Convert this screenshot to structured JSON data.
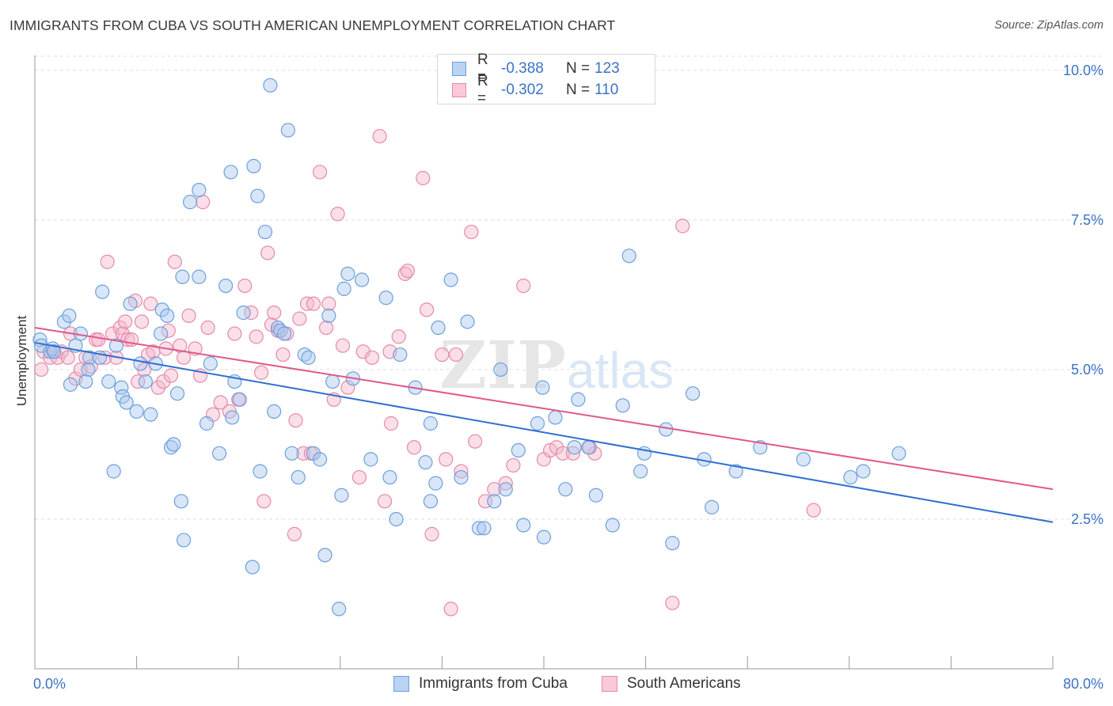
{
  "title": "IMMIGRANTS FROM CUBA VS SOUTH AMERICAN UNEMPLOYMENT CORRELATION CHART",
  "source": "Source: ZipAtlas.com",
  "watermark": {
    "zip": "ZIP",
    "atlas": "atlas"
  },
  "legend_top": [
    {
      "r_label": "R =",
      "r_value": "-0.388",
      "n_label": "N =",
      "n_value": "123"
    },
    {
      "r_label": "R =",
      "r_value": "-0.302",
      "n_label": "N =",
      "n_value": "110"
    }
  ],
  "legend_bottom": [
    "Immigrants from Cuba",
    "South Americans"
  ],
  "colors": {
    "blue_fill": "#a9c8f0",
    "blue_stroke": "#6e9fdc",
    "blue_line": "#2f6fd0",
    "pink_fill": "#f5b8cc",
    "pink_stroke": "#e58aa8",
    "pink_line": "#e0588a",
    "tick_text": "#3a72c4",
    "grid": "#dddddd"
  },
  "chart_data": {
    "type": "scatter",
    "title": "IMMIGRANTS FROM CUBA VS SOUTH AMERICAN UNEMPLOYMENT CORRELATION CHART",
    "xlabel": "",
    "ylabel": "Unemployment",
    "xlim": [
      0,
      80
    ],
    "ylim": [
      0,
      10.25
    ],
    "x_tick_labels": [
      "0.0%",
      "80.0%"
    ],
    "y_ticks": [
      2.5,
      5.0,
      7.5,
      10.0
    ],
    "y_tick_labels": [
      "2.5%",
      "5.0%",
      "7.5%",
      "10.0%"
    ],
    "grid": true,
    "legend_position": "top-center",
    "series": [
      {
        "name": "Immigrants from Cuba",
        "color": "#6e9fdc",
        "trend": {
          "x": [
            0,
            80
          ],
          "y": [
            5.45,
            2.45
          ]
        },
        "points": [
          [
            0.4,
            5.5
          ],
          [
            0.5,
            5.4
          ],
          [
            1.2,
            5.3
          ],
          [
            1.4,
            5.35
          ],
          [
            1.5,
            5.3
          ],
          [
            2.3,
            5.8
          ],
          [
            2.7,
            5.9
          ],
          [
            2.8,
            4.75
          ],
          [
            3.2,
            5.4
          ],
          [
            3.6,
            5.6
          ],
          [
            4.3,
            5.2
          ],
          [
            4.2,
            5.0
          ],
          [
            4.0,
            4.8
          ],
          [
            5.3,
            6.3
          ],
          [
            5.1,
            5.2
          ],
          [
            5.8,
            4.8
          ],
          [
            6.2,
            3.3
          ],
          [
            6.4,
            5.4
          ],
          [
            6.8,
            4.7
          ],
          [
            6.9,
            4.55
          ],
          [
            7.2,
            4.45
          ],
          [
            7.5,
            6.1
          ],
          [
            8.0,
            4.3
          ],
          [
            8.3,
            5.1
          ],
          [
            8.7,
            4.8
          ],
          [
            9.1,
            4.25
          ],
          [
            9.5,
            5.1
          ],
          [
            9.9,
            5.6
          ],
          [
            10.0,
            6.0
          ],
          [
            10.4,
            5.9
          ],
          [
            10.7,
            3.7
          ],
          [
            10.9,
            3.75
          ],
          [
            11.2,
            4.6
          ],
          [
            11.5,
            2.8
          ],
          [
            11.7,
            2.15
          ],
          [
            11.6,
            6.55
          ],
          [
            12.2,
            7.8
          ],
          [
            12.9,
            6.55
          ],
          [
            12.9,
            8.0
          ],
          [
            13.5,
            4.1
          ],
          [
            13.8,
            5.1
          ],
          [
            14.5,
            3.6
          ],
          [
            15.0,
            6.4
          ],
          [
            15.4,
            8.3
          ],
          [
            15.5,
            4.2
          ],
          [
            15.7,
            4.8
          ],
          [
            16.1,
            4.5
          ],
          [
            16.4,
            5.95
          ],
          [
            17.1,
            1.7
          ],
          [
            17.2,
            8.4
          ],
          [
            17.5,
            7.9
          ],
          [
            17.7,
            3.3
          ],
          [
            18.1,
            7.3
          ],
          [
            18.5,
            9.75
          ],
          [
            18.8,
            4.3
          ],
          [
            19.1,
            5.7
          ],
          [
            19.3,
            5.65
          ],
          [
            19.6,
            5.6
          ],
          [
            19.9,
            9.0
          ],
          [
            20.2,
            3.6
          ],
          [
            20.7,
            3.2
          ],
          [
            21.2,
            5.25
          ],
          [
            21.5,
            5.2
          ],
          [
            21.9,
            3.6
          ],
          [
            22.4,
            3.5
          ],
          [
            22.8,
            1.9
          ],
          [
            23.1,
            5.9
          ],
          [
            23.4,
            4.8
          ],
          [
            23.9,
            1.0
          ],
          [
            24.1,
            2.9
          ],
          [
            24.3,
            6.35
          ],
          [
            24.6,
            6.6
          ],
          [
            25.0,
            4.85
          ],
          [
            25.7,
            6.5
          ],
          [
            26.4,
            3.5
          ],
          [
            27.6,
            6.2
          ],
          [
            27.9,
            3.2
          ],
          [
            28.4,
            2.5
          ],
          [
            28.7,
            5.25
          ],
          [
            29.9,
            4.7
          ],
          [
            30.7,
            3.45
          ],
          [
            31.1,
            2.8
          ],
          [
            31.1,
            4.1
          ],
          [
            31.5,
            3.1
          ],
          [
            31.7,
            5.7
          ],
          [
            32.7,
            6.5
          ],
          [
            33.5,
            3.2
          ],
          [
            34.0,
            5.8
          ],
          [
            34.9,
            2.35
          ],
          [
            35.3,
            2.35
          ],
          [
            36.1,
            2.8
          ],
          [
            36.6,
            5.0
          ],
          [
            37.0,
            3.0
          ],
          [
            38.0,
            3.65
          ],
          [
            38.4,
            2.4
          ],
          [
            39.5,
            4.1
          ],
          [
            39.9,
            4.7
          ],
          [
            40.0,
            2.2
          ],
          [
            40.9,
            4.2
          ],
          [
            41.7,
            3.0
          ],
          [
            42.4,
            3.7
          ],
          [
            42.7,
            4.5
          ],
          [
            43.5,
            3.7
          ],
          [
            44.1,
            2.9
          ],
          [
            45.4,
            2.4
          ],
          [
            46.2,
            4.4
          ],
          [
            46.7,
            6.9
          ],
          [
            47.6,
            3.3
          ],
          [
            47.9,
            3.6
          ],
          [
            49.6,
            4.0
          ],
          [
            50.1,
            2.1
          ],
          [
            51.7,
            4.6
          ],
          [
            52.6,
            3.5
          ],
          [
            53.2,
            2.7
          ],
          [
            55.1,
            3.3
          ],
          [
            57.0,
            3.7
          ],
          [
            60.4,
            3.5
          ],
          [
            64.1,
            3.2
          ],
          [
            65.1,
            3.3
          ],
          [
            67.9,
            3.6
          ]
        ]
      },
      {
        "name": "South Americans",
        "color": "#e58aa8",
        "trend": {
          "x": [
            0,
            80
          ],
          "y": [
            5.7,
            3.0
          ]
        },
        "points": [
          [
            0.5,
            5.0
          ],
          [
            0.7,
            5.3
          ],
          [
            1.2,
            5.2
          ],
          [
            1.5,
            5.3
          ],
          [
            1.8,
            5.2
          ],
          [
            2.1,
            5.3
          ],
          [
            2.6,
            5.2
          ],
          [
            2.8,
            5.6
          ],
          [
            3.2,
            4.85
          ],
          [
            3.6,
            5.0
          ],
          [
            4.0,
            5.2
          ],
          [
            4.4,
            5.05
          ],
          [
            4.8,
            5.5
          ],
          [
            5.0,
            5.5
          ],
          [
            5.5,
            5.2
          ],
          [
            5.7,
            6.8
          ],
          [
            6.1,
            5.6
          ],
          [
            6.4,
            5.2
          ],
          [
            6.7,
            5.7
          ],
          [
            6.9,
            5.6
          ],
          [
            7.1,
            5.8
          ],
          [
            7.3,
            5.5
          ],
          [
            7.6,
            5.5
          ],
          [
            7.9,
            6.15
          ],
          [
            8.1,
            4.8
          ],
          [
            8.4,
            5.8
          ],
          [
            8.6,
            5.0
          ],
          [
            8.9,
            5.25
          ],
          [
            9.1,
            6.1
          ],
          [
            9.3,
            5.3
          ],
          [
            9.7,
            4.7
          ],
          [
            10.1,
            4.8
          ],
          [
            10.3,
            5.35
          ],
          [
            10.5,
            5.65
          ],
          [
            10.7,
            4.9
          ],
          [
            11.0,
            6.8
          ],
          [
            11.4,
            5.4
          ],
          [
            11.7,
            5.2
          ],
          [
            12.1,
            5.9
          ],
          [
            12.6,
            5.35
          ],
          [
            13.0,
            4.9
          ],
          [
            13.2,
            7.8
          ],
          [
            13.6,
            5.7
          ],
          [
            14.0,
            4.25
          ],
          [
            14.6,
            4.45
          ],
          [
            15.3,
            4.3
          ],
          [
            15.7,
            5.6
          ],
          [
            16.0,
            4.5
          ],
          [
            16.5,
            6.4
          ],
          [
            17.0,
            5.95
          ],
          [
            17.4,
            5.55
          ],
          [
            17.8,
            4.95
          ],
          [
            18.0,
            2.8
          ],
          [
            18.3,
            6.95
          ],
          [
            18.6,
            5.75
          ],
          [
            18.8,
            5.95
          ],
          [
            19.1,
            5.65
          ],
          [
            19.5,
            5.25
          ],
          [
            19.8,
            5.6
          ],
          [
            20.4,
            2.25
          ],
          [
            20.5,
            4.15
          ],
          [
            20.8,
            5.85
          ],
          [
            21.1,
            3.6
          ],
          [
            21.4,
            6.1
          ],
          [
            21.7,
            3.6
          ],
          [
            21.9,
            6.1
          ],
          [
            22.4,
            8.3
          ],
          [
            22.9,
            5.7
          ],
          [
            23.1,
            6.1
          ],
          [
            23.5,
            4.5
          ],
          [
            23.8,
            7.6
          ],
          [
            24.2,
            5.4
          ],
          [
            24.6,
            4.7
          ],
          [
            25.5,
            3.2
          ],
          [
            25.8,
            5.3
          ],
          [
            26.5,
            5.2
          ],
          [
            27.1,
            8.9
          ],
          [
            27.5,
            2.8
          ],
          [
            27.9,
            5.3
          ],
          [
            28.0,
            4.1
          ],
          [
            28.6,
            5.55
          ],
          [
            29.1,
            6.6
          ],
          [
            29.3,
            6.65
          ],
          [
            29.8,
            3.7
          ],
          [
            30.5,
            8.2
          ],
          [
            30.8,
            6.0
          ],
          [
            31.2,
            2.25
          ],
          [
            32.0,
            5.25
          ],
          [
            32.3,
            3.5
          ],
          [
            32.7,
            1.0
          ],
          [
            33.1,
            5.25
          ],
          [
            33.5,
            3.3
          ],
          [
            34.3,
            7.3
          ],
          [
            34.6,
            3.8
          ],
          [
            35.4,
            2.8
          ],
          [
            36.1,
            3.0
          ],
          [
            37.0,
            3.1
          ],
          [
            37.6,
            3.4
          ],
          [
            38.4,
            6.4
          ],
          [
            40.0,
            3.5
          ],
          [
            40.5,
            3.65
          ],
          [
            41.0,
            3.7
          ],
          [
            41.5,
            3.6
          ],
          [
            42.3,
            3.6
          ],
          [
            44.0,
            3.6
          ],
          [
            50.1,
            1.1
          ],
          [
            50.9,
            7.4
          ],
          [
            61.2,
            2.65
          ],
          [
            43.6,
            3.7
          ]
        ]
      }
    ]
  }
}
